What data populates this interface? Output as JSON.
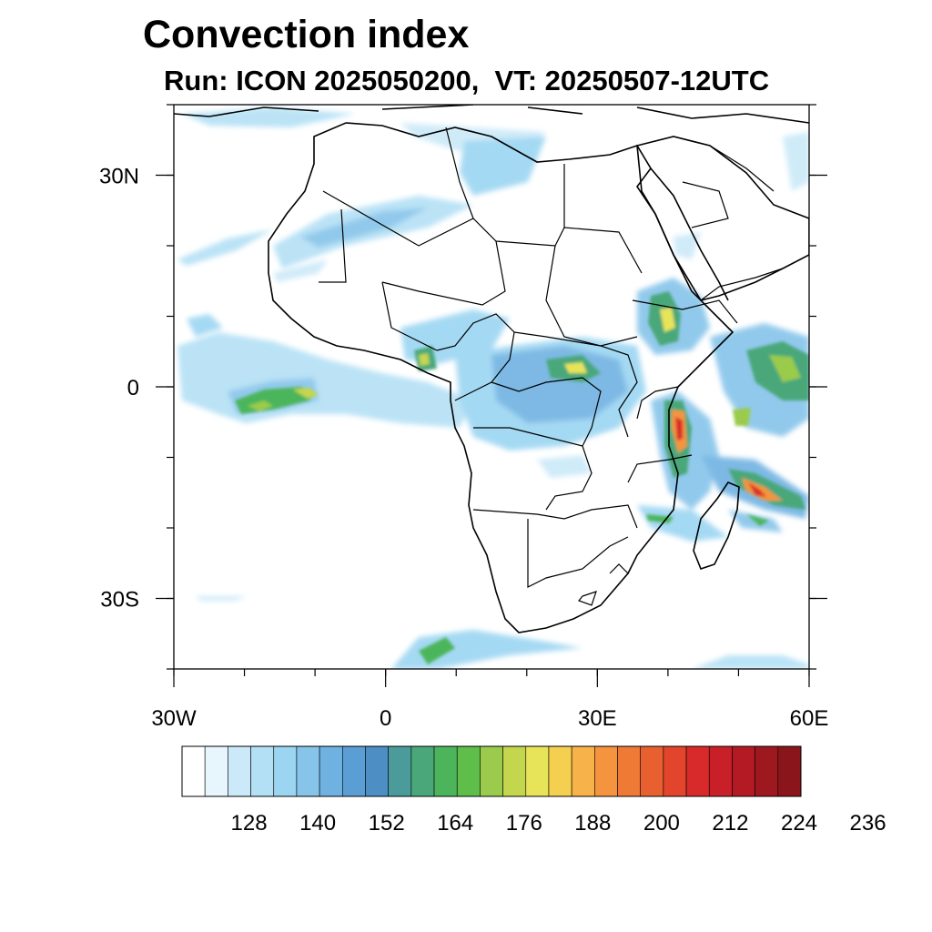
{
  "title": "Convection index",
  "subtitle": "Run: ICON 2025050200,  VT: 20250507-12UTC",
  "map": {
    "lon_range": [
      -30,
      60
    ],
    "lat_range": [
      -40,
      40
    ],
    "lat_ticks": [
      {
        "value": 30,
        "label": "30N"
      },
      {
        "value": 0,
        "label": "0"
      },
      {
        "value": -30,
        "label": "30S"
      }
    ],
    "lon_ticks": [
      {
        "value": -30,
        "label": "30W"
      },
      {
        "value": 0,
        "label": "0"
      },
      {
        "value": 30,
        "label": "30E"
      },
      {
        "value": 60,
        "label": "60E"
      }
    ],
    "minor_lat_step": 10,
    "minor_lon_step": 10
  },
  "colorbar": {
    "colors": [
      "#ffffff",
      "#e7f5fc",
      "#cbe9f8",
      "#b4e0f5",
      "#9bd5f2",
      "#86c4ea",
      "#6fb2e2",
      "#5a9ed4",
      "#4d8ec4",
      "#4a9b9a",
      "#4aa77a",
      "#4cb55c",
      "#5fbd4a",
      "#9acb4c",
      "#c4d64e",
      "#e8e45a",
      "#f5d050",
      "#f8b24a",
      "#f5943e",
      "#ee7a36",
      "#e86030",
      "#e2452c",
      "#d82a2a",
      "#c91f28",
      "#b31a24",
      "#9e1820",
      "#8a161c"
    ],
    "labels": [
      "128",
      "140",
      "152",
      "164",
      "176",
      "188",
      "200",
      "212",
      "224",
      "236"
    ]
  },
  "icons": {
    "coastline": "coastline-lines",
    "borders": "country-border-lines"
  }
}
